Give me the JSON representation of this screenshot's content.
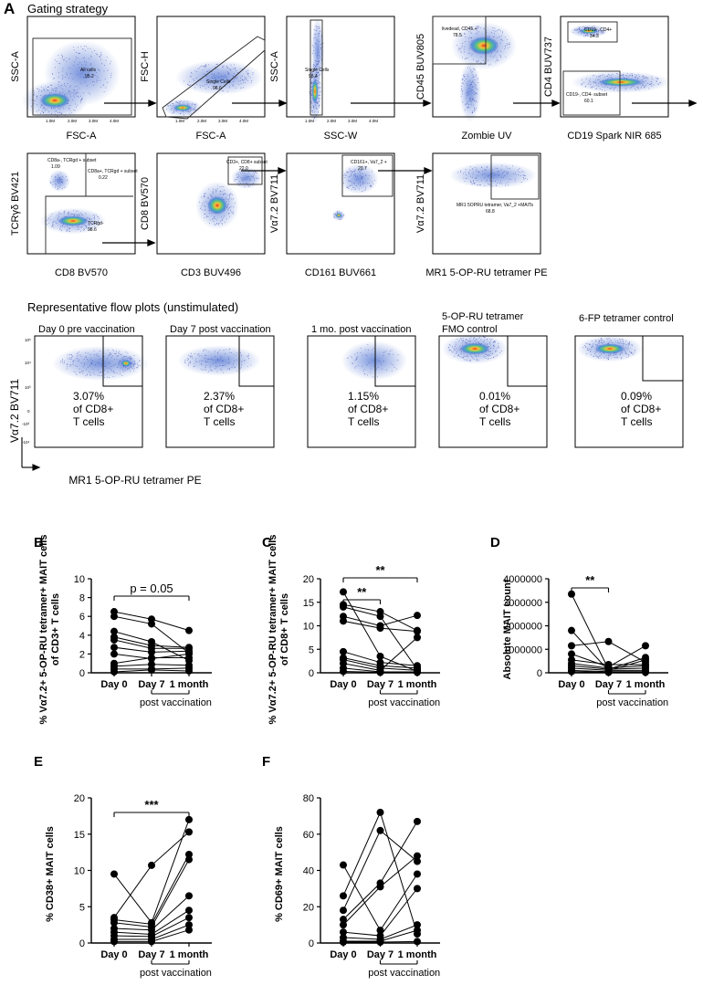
{
  "panel_a": {
    "letter": "A",
    "title": "Gating strategy",
    "gates_row1": [
      {
        "x_label": "FSC-A",
        "y_label": "SSC-A",
        "gate_label": "All cells",
        "gate_value": "95.2"
      },
      {
        "x_label": "FSC-A",
        "y_label": "FSC-H",
        "gate_label": "Single Cells",
        "gate_value": "98.6"
      },
      {
        "x_label": "SSC-W",
        "y_label": "SSC-A",
        "gate_label": "Single Cells",
        "gate_value": "98.4"
      },
      {
        "x_label": "Zombie UV",
        "y_label": "CD45 BUV805",
        "gate_label": "livedead, CD45 +",
        "gate_value": "78.5"
      },
      {
        "x_label": "CD19 Spark NIR 685",
        "y_label": "CD4 BUV737",
        "gate_label": "CD19-, CD4+",
        "gate_value": "34.3",
        "gate_label_2": "CD19-, CD4- subset",
        "gate_value_2": "60.1"
      }
    ],
    "gates_row2": [
      {
        "x_label": "CD8 BV570",
        "y_label": "TCRγδ BV421",
        "gate_label": "CD8a-, TCRgd + subset",
        "gate_value": "1.09",
        "gate_label_2": "CD8a+, TCRgd + subset",
        "gate_value_2": "0.22",
        "gate_label_3": "TCRgd-",
        "gate_value_3": "98.6"
      },
      {
        "x_label": "CD3 BUV496",
        "y_label": "CD8 BV570",
        "gate_label": "CD3+, CD8+ subset",
        "gate_value": "22.0"
      },
      {
        "x_label": "CD161 BUV661",
        "y_label": "Vα7.2 BV711",
        "gate_label": "CD161+, Va7_2 +",
        "gate_value": "20.7"
      },
      {
        "x_label": "MR1 5-OP-RU tetramer PE",
        "y_label": "Vα7.2 BV711",
        "gate_label": "MR1 5OPRU tetramer, Va7_2 +MAITs",
        "gate_value": "68.8"
      }
    ],
    "representative_title": "Representative flow plots (unstimulated)",
    "rep_plots": [
      {
        "title": "Day 0 pre vaccination",
        "percent": "3.07%",
        "line2": "of CD8+",
        "line3": "T cells"
      },
      {
        "title": "Day 7 post vaccination",
        "percent": "2.37%",
        "line2": "of CD8+",
        "line3": "T cells"
      },
      {
        "title": "1 mo. post vaccination",
        "percent": "1.15%",
        "line2": "of CD8+",
        "line3": "T cells"
      },
      {
        "title": "5-OP-RU tetramer",
        "title2": "FMO control",
        "percent": "0.01%",
        "line2": "of CD8+",
        "line3": "T cells"
      },
      {
        "title": "6-FP tetramer control",
        "percent": "0.09%",
        "line2": "of CD8+",
        "line3": "T cells"
      }
    ],
    "rep_y_label": "Vα7.2 BV711",
    "rep_x_label": "MR1 5-OP-RU tetramer PE",
    "tick_labels": {
      "e5": "10⁵",
      "e4": "10⁴",
      "e3": "10³",
      "zero": "0",
      "neg3": "-10³",
      "neg4": "-10⁴"
    },
    "lin_ticks": [
      "1.0M",
      "2.0M",
      "3.0M",
      "4.0M"
    ]
  },
  "chart_data": [
    {
      "panel": "B",
      "type": "scatter-paired",
      "ylabel": "% Vα7.2+ 5-OP-RU tetramer+ MAIT cells of CD3+ T cells",
      "categories": [
        "Day 0",
        "Day 7",
        "1 month"
      ],
      "group_label": "post vaccination",
      "ylim": [
        0,
        10
      ],
      "yticks": [
        0,
        2,
        4,
        6,
        8,
        10
      ],
      "annotation": "p = 0.05",
      "series": [
        {
          "name": "s1",
          "values": [
            6.5,
            5.7,
            4.5
          ]
        },
        {
          "name": "s2",
          "values": [
            6.0,
            5.2,
            2.1
          ]
        },
        {
          "name": "s3",
          "values": [
            4.4,
            3.3,
            1.3
          ]
        },
        {
          "name": "s4",
          "values": [
            3.8,
            2.9,
            2.7
          ]
        },
        {
          "name": "s5",
          "values": [
            3.5,
            2.6,
            2.6
          ]
        },
        {
          "name": "s6",
          "values": [
            2.7,
            2.2,
            2.3
          ]
        },
        {
          "name": "s7",
          "values": [
            2.0,
            1.5,
            2.0
          ]
        },
        {
          "name": "s8",
          "values": [
            1.0,
            1.6,
            1.6
          ]
        },
        {
          "name": "s9",
          "values": [
            0.7,
            0.9,
            0.8
          ]
        },
        {
          "name": "s10",
          "values": [
            0.4,
            0.4,
            0.5
          ]
        },
        {
          "name": "s11",
          "values": [
            0.1,
            0.3,
            0.2
          ]
        }
      ]
    },
    {
      "panel": "C",
      "type": "scatter-paired",
      "ylabel": "% Vα7.2+ 5-OP-RU tetramer+ MAIT cells of CD8+ T cells",
      "categories": [
        "Day 0",
        "Day 7",
        "1 month"
      ],
      "group_label": "post vaccination",
      "ylim": [
        0,
        20
      ],
      "yticks": [
        0,
        5,
        10,
        15,
        20
      ],
      "annotations": [
        "**",
        "**"
      ],
      "series": [
        {
          "name": "s1",
          "values": [
            17.2,
            3.5,
            0.3
          ]
        },
        {
          "name": "s2",
          "values": [
            14.5,
            13.0,
            9.0
          ]
        },
        {
          "name": "s3",
          "values": [
            14.0,
            12.0,
            0.7
          ]
        },
        {
          "name": "s4",
          "values": [
            12.0,
            10.0,
            12.2
          ]
        },
        {
          "name": "s5",
          "values": [
            11.0,
            9.5,
            8.8
          ]
        },
        {
          "name": "s6",
          "values": [
            4.5,
            2.2,
            1.5
          ]
        },
        {
          "name": "s7",
          "values": [
            3.2,
            1.5,
            1.0
          ]
        },
        {
          "name": "s8",
          "values": [
            2.8,
            1.0,
            0.5
          ]
        },
        {
          "name": "s9",
          "values": [
            2.0,
            0.5,
            7.5
          ]
        },
        {
          "name": "s10",
          "values": [
            1.0,
            0.2,
            0.2
          ]
        },
        {
          "name": "s11",
          "values": [
            0.3,
            0.1,
            0.1
          ]
        }
      ]
    },
    {
      "panel": "D",
      "type": "scatter-paired",
      "ylabel": "Absolute MAIT count",
      "categories": [
        "Day 0",
        "Day 7",
        "1 month"
      ],
      "group_label": "post vaccination",
      "ylim": [
        0,
        4000000
      ],
      "yticks": [
        0,
        1000000,
        2000000,
        3000000,
        4000000
      ],
      "annotation": "**",
      "series": [
        {
          "name": "s1",
          "values": [
            3350000,
            150000,
            650000
          ]
        },
        {
          "name": "s2",
          "values": [
            1800000,
            100000,
            550000
          ]
        },
        {
          "name": "s3",
          "values": [
            1150000,
            1330000,
            450000
          ]
        },
        {
          "name": "s4",
          "values": [
            800000,
            250000,
            1150000
          ]
        },
        {
          "name": "s5",
          "values": [
            550000,
            350000,
            350000
          ]
        },
        {
          "name": "s6",
          "values": [
            400000,
            200000,
            300000
          ]
        },
        {
          "name": "s7",
          "values": [
            300000,
            150000,
            200000
          ]
        },
        {
          "name": "s8",
          "values": [
            200000,
            100000,
            100000
          ]
        },
        {
          "name": "s9",
          "values": [
            100000,
            50000,
            50000
          ]
        },
        {
          "name": "s10",
          "values": [
            50000,
            20000,
            20000
          ]
        }
      ]
    },
    {
      "panel": "E",
      "type": "scatter-paired",
      "ylabel": "% CD38+ MAIT cells",
      "categories": [
        "Day 0",
        "Day 7",
        "1 month"
      ],
      "group_label": "post vaccination",
      "ylim": [
        0,
        20
      ],
      "yticks": [
        0,
        5,
        10,
        15,
        20
      ],
      "annotation": "***",
      "series": [
        {
          "name": "s1",
          "values": [
            9.5,
            2.8,
            17.0
          ]
        },
        {
          "name": "s2",
          "values": [
            3.5,
            10.7,
            15.3
          ]
        },
        {
          "name": "s3",
          "values": [
            3.2,
            2.6,
            12.2
          ]
        },
        {
          "name": "s4",
          "values": [
            2.8,
            2.2,
            11.5
          ]
        },
        {
          "name": "s5",
          "values": [
            2.0,
            1.8,
            6.5
          ]
        },
        {
          "name": "s6",
          "values": [
            1.5,
            1.2,
            4.5
          ]
        },
        {
          "name": "s7",
          "values": [
            1.0,
            0.9,
            3.5
          ]
        },
        {
          "name": "s8",
          "values": [
            0.5,
            0.5,
            2.5
          ]
        },
        {
          "name": "s9",
          "values": [
            0.2,
            0.2,
            1.8
          ]
        }
      ]
    },
    {
      "panel": "F",
      "type": "scatter-paired",
      "ylabel": "% CD69+ MAIT cells",
      "categories": [
        "Day 0",
        "Day 7",
        "1 month"
      ],
      "group_label": "post vaccination",
      "ylim": [
        0,
        80
      ],
      "yticks": [
        0,
        20,
        40,
        60,
        80
      ],
      "series": [
        {
          "name": "s1",
          "values": [
            43,
            7,
            38
          ]
        },
        {
          "name": "s2",
          "values": [
            26,
            72,
            5
          ]
        },
        {
          "name": "s3",
          "values": [
            18,
            62,
            45
          ]
        },
        {
          "name": "s4",
          "values": [
            13,
            33,
            67
          ]
        },
        {
          "name": "s5",
          "values": [
            10,
            31,
            48
          ]
        },
        {
          "name": "s6",
          "values": [
            6,
            4,
            30
          ]
        },
        {
          "name": "s7",
          "values": [
            3,
            2,
            10
          ]
        },
        {
          "name": "s8",
          "values": [
            1,
            1,
            7
          ]
        },
        {
          "name": "s9",
          "values": [
            0.5,
            0.5,
            0.8
          ]
        }
      ]
    }
  ]
}
